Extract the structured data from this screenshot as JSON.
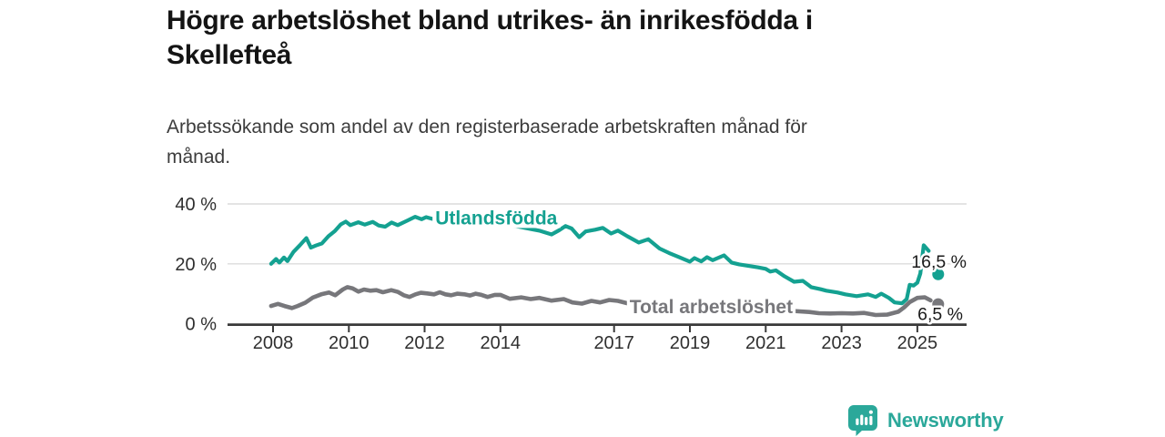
{
  "chart_data": {
    "type": "line",
    "title": "Högre arbetslöshet bland utrikes- än inrikesfödda i\nSkellefteå",
    "subtitle": "Arbetssökande som andel av den registerbaserade arbetskraften månad för\nmånad.",
    "x_ticks": [
      2008,
      2010,
      2012,
      2014,
      2017,
      2019,
      2021,
      2023,
      2025
    ],
    "y_ticks": [
      {
        "value": 0,
        "label": "0 %"
      },
      {
        "value": 20,
        "label": "20 %"
      },
      {
        "value": 40,
        "label": "40 %"
      }
    ],
    "xlim": [
      2006.8,
      2026.3
    ],
    "ylim": [
      0,
      40
    ],
    "grid": "horizontal-only",
    "legend": "inline-series-labels",
    "series": [
      {
        "id": "utlandsfodda",
        "name": "Utlandsfödda",
        "color": "#14a191",
        "label_pos": [
          2012.28,
          33.2
        ],
        "end_dot": [
          2025.55,
          16.5
        ],
        "end_label": "16,5 %",
        "points": [
          [
            2007.95,
            20.0
          ],
          [
            2008.08,
            21.6
          ],
          [
            2008.17,
            20.4
          ],
          [
            2008.29,
            22.1
          ],
          [
            2008.38,
            20.9
          ],
          [
            2008.54,
            24.0
          ],
          [
            2008.71,
            26.2
          ],
          [
            2008.88,
            28.6
          ],
          [
            2009.0,
            25.4
          ],
          [
            2009.13,
            26.1
          ],
          [
            2009.29,
            26.8
          ],
          [
            2009.46,
            29.2
          ],
          [
            2009.63,
            30.9
          ],
          [
            2009.79,
            33.2
          ],
          [
            2009.92,
            34.1
          ],
          [
            2010.04,
            32.9
          ],
          [
            2010.25,
            33.9
          ],
          [
            2010.42,
            33.1
          ],
          [
            2010.63,
            34.0
          ],
          [
            2010.79,
            32.8
          ],
          [
            2010.96,
            32.4
          ],
          [
            2011.13,
            33.8
          ],
          [
            2011.29,
            32.9
          ],
          [
            2011.54,
            34.4
          ],
          [
            2011.75,
            35.7
          ],
          [
            2011.92,
            34.9
          ],
          [
            2012.04,
            35.6
          ],
          [
            2012.2,
            35.0
          ],
          [
            2012.6,
            34.8
          ],
          [
            2013.2,
            34.3
          ],
          [
            2013.8,
            33.6
          ],
          [
            2014.4,
            32.6
          ],
          [
            2015.05,
            31.0
          ],
          [
            2015.35,
            29.8
          ],
          [
            2015.55,
            31.2
          ],
          [
            2015.72,
            32.6
          ],
          [
            2015.88,
            31.8
          ],
          [
            2016.08,
            28.9
          ],
          [
            2016.25,
            30.8
          ],
          [
            2016.5,
            31.4
          ],
          [
            2016.7,
            32.0
          ],
          [
            2016.92,
            30.1
          ],
          [
            2017.1,
            31.1
          ],
          [
            2017.35,
            29.2
          ],
          [
            2017.65,
            27.1
          ],
          [
            2017.9,
            28.2
          ],
          [
            2018.2,
            25.1
          ],
          [
            2018.45,
            23.6
          ],
          [
            2018.7,
            22.3
          ],
          [
            2019.0,
            20.7
          ],
          [
            2019.12,
            21.9
          ],
          [
            2019.3,
            20.8
          ],
          [
            2019.45,
            22.2
          ],
          [
            2019.6,
            21.2
          ],
          [
            2019.9,
            22.8
          ],
          [
            2020.1,
            20.4
          ],
          [
            2020.3,
            19.8
          ],
          [
            2020.55,
            19.3
          ],
          [
            2020.8,
            18.8
          ],
          [
            2021.0,
            18.3
          ],
          [
            2021.12,
            17.4
          ],
          [
            2021.27,
            17.8
          ],
          [
            2021.5,
            15.8
          ],
          [
            2021.75,
            14.0
          ],
          [
            2021.98,
            14.3
          ],
          [
            2022.2,
            12.2
          ],
          [
            2022.45,
            11.5
          ],
          [
            2022.6,
            11.0
          ],
          [
            2022.9,
            10.4
          ],
          [
            2023.1,
            9.8
          ],
          [
            2023.4,
            9.2
          ],
          [
            2023.7,
            9.8
          ],
          [
            2023.9,
            8.9
          ],
          [
            2024.05,
            10.0
          ],
          [
            2024.25,
            8.6
          ],
          [
            2024.4,
            7.1
          ],
          [
            2024.6,
            6.8
          ],
          [
            2024.72,
            8.2
          ],
          [
            2024.8,
            13.0
          ],
          [
            2024.9,
            12.7
          ],
          [
            2025.0,
            13.7
          ],
          [
            2025.08,
            16.8
          ],
          [
            2025.17,
            26.2
          ],
          [
            2025.3,
            24.3
          ]
        ]
      },
      {
        "id": "total",
        "name": "Total arbetslöshet",
        "color": "#77777b",
        "label_pos": [
          2017.41,
          3.5
        ],
        "end_dot": [
          2025.55,
          6.5
        ],
        "end_label": "6,5 %",
        "points": [
          [
            2007.95,
            5.9
          ],
          [
            2008.13,
            6.6
          ],
          [
            2008.3,
            5.9
          ],
          [
            2008.5,
            5.2
          ],
          [
            2008.65,
            5.9
          ],
          [
            2008.85,
            7.0
          ],
          [
            2009.05,
            8.7
          ],
          [
            2009.27,
            9.8
          ],
          [
            2009.48,
            10.4
          ],
          [
            2009.64,
            9.5
          ],
          [
            2009.84,
            11.4
          ],
          [
            2009.96,
            12.2
          ],
          [
            2010.1,
            11.8
          ],
          [
            2010.25,
            10.7
          ],
          [
            2010.4,
            11.4
          ],
          [
            2010.56,
            11.0
          ],
          [
            2010.73,
            11.2
          ],
          [
            2010.9,
            10.5
          ],
          [
            2011.12,
            11.2
          ],
          [
            2011.3,
            10.6
          ],
          [
            2011.45,
            9.5
          ],
          [
            2011.6,
            8.9
          ],
          [
            2011.76,
            9.8
          ],
          [
            2011.9,
            10.3
          ],
          [
            2012.07,
            10.1
          ],
          [
            2012.25,
            9.8
          ],
          [
            2012.4,
            10.5
          ],
          [
            2012.55,
            9.8
          ],
          [
            2012.7,
            9.5
          ],
          [
            2012.86,
            10.0
          ],
          [
            2013.05,
            9.8
          ],
          [
            2013.2,
            9.4
          ],
          [
            2013.35,
            10.0
          ],
          [
            2013.5,
            9.6
          ],
          [
            2013.66,
            8.9
          ],
          [
            2013.85,
            9.6
          ],
          [
            2014.0,
            9.6
          ],
          [
            2014.25,
            8.3
          ],
          [
            2014.55,
            8.8
          ],
          [
            2014.8,
            8.2
          ],
          [
            2015.03,
            8.6
          ],
          [
            2015.35,
            7.7
          ],
          [
            2015.67,
            8.2
          ],
          [
            2015.9,
            7.1
          ],
          [
            2016.15,
            6.7
          ],
          [
            2016.4,
            7.6
          ],
          [
            2016.63,
            7.1
          ],
          [
            2016.87,
            7.9
          ],
          [
            2017.1,
            7.6
          ],
          [
            2017.35,
            6.8
          ],
          [
            2018.0,
            6.0
          ],
          [
            2018.6,
            5.4
          ],
          [
            2019.2,
            5.1
          ],
          [
            2019.8,
            5.3
          ],
          [
            2020.3,
            5.6
          ],
          [
            2020.9,
            4.9
          ],
          [
            2021.5,
            4.4
          ],
          [
            2022.15,
            3.9
          ],
          [
            2022.4,
            3.5
          ],
          [
            2022.7,
            3.4
          ],
          [
            2023.0,
            3.5
          ],
          [
            2023.3,
            3.4
          ],
          [
            2023.6,
            3.6
          ],
          [
            2023.9,
            2.9
          ],
          [
            2024.2,
            3.0
          ],
          [
            2024.5,
            4.0
          ],
          [
            2024.65,
            5.4
          ],
          [
            2024.8,
            7.2
          ],
          [
            2025.0,
            8.6
          ],
          [
            2025.2,
            8.8
          ],
          [
            2025.35,
            7.8
          ]
        ]
      }
    ]
  },
  "branding": {
    "name": "Newsworthy",
    "color": "#2ba89a"
  },
  "colors": {
    "background": "#ffffff",
    "grid": "#dcdcdc",
    "axis": "#3a3a3a",
    "tick_text": "#2f2f2f",
    "value_text": "#1a1a1a"
  }
}
